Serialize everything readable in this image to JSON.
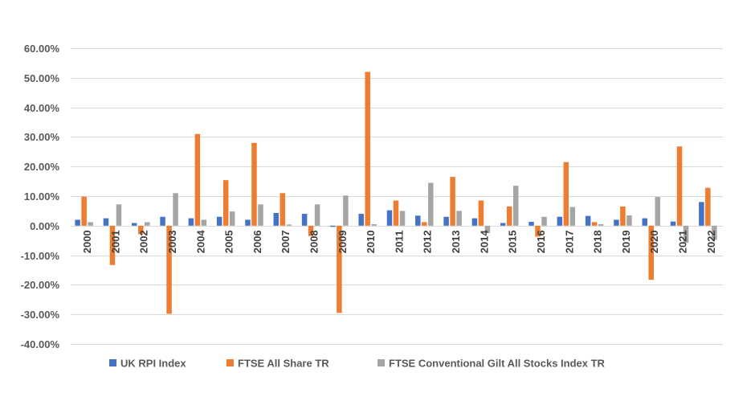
{
  "chart_data": {
    "type": "bar",
    "categories": [
      "2000",
      "2001",
      "2002",
      "2003",
      "2004",
      "2005",
      "2006",
      "2007",
      "2008",
      "2009",
      "2010",
      "2011",
      "2012",
      "2013",
      "2014",
      "2015",
      "2016",
      "2017",
      "2018",
      "2019",
      "2020",
      "2021",
      "2022"
    ],
    "series": [
      {
        "name": "UK RPI Index",
        "color": "#4472c4",
        "values": [
          2.0,
          2.5,
          0.9,
          3.0,
          2.5,
          3.0,
          2.0,
          4.3,
          4.0,
          -0.4,
          4.0,
          5.2,
          3.4,
          3.0,
          2.5,
          0.9,
          1.3,
          3.0,
          3.3,
          2.0,
          2.5,
          1.4,
          8.0
        ]
      },
      {
        "name": "FTSE All Share TR",
        "color": "#ed7d31",
        "values": [
          9.8,
          -13.3,
          -2.9,
          -29.8,
          31.0,
          15.4,
          28.0,
          11.0,
          -3.5,
          -29.5,
          52.0,
          8.5,
          1.2,
          16.5,
          8.5,
          6.5,
          -3.7,
          21.5,
          1.2,
          6.5,
          -18.3,
          26.8,
          12.8
        ]
      },
      {
        "name": "FTSE Conventional Gilt All Stocks Index TR",
        "color": "#a5a5a5",
        "values": [
          1.2,
          7.2,
          1.2,
          11.0,
          2.0,
          4.8,
          7.2,
          0.4,
          7.2,
          10.2,
          0.5,
          5.0,
          14.5,
          5.0,
          -2.5,
          13.5,
          3.0,
          6.3,
          0.5,
          3.5,
          9.7,
          -5.8,
          -4.8
        ]
      }
    ],
    "y_ticks": [
      "60.00%",
      "50.00%",
      "40.00%",
      "30.00%",
      "20.00%",
      "10.00%",
      "0.00%",
      "-10.00%",
      "-20.00%",
      "-30.00%",
      "-40.00%"
    ],
    "ylim": [
      -40,
      60
    ],
    "y_unit": "%",
    "grid": true,
    "legend_position": "bottom",
    "title": "",
    "xlabel": "",
    "ylabel": ""
  }
}
